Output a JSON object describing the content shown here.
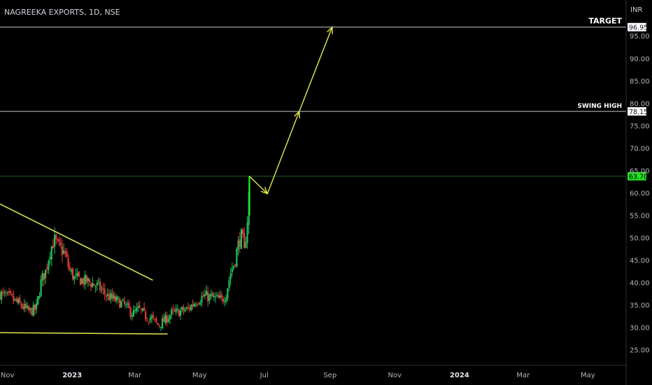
{
  "chart_data": {
    "type": "candlestick",
    "title": "NAGREEKA EXPORTS, 1D, NSE",
    "currency": "INR",
    "ylim": [
      21.5,
      103
    ],
    "y_ticks": [
      "25.00",
      "30.00",
      "35.00",
      "40.00",
      "45.00",
      "50.00",
      "55.00",
      "60.00",
      "65.00",
      "70.00",
      "75.00",
      "80.00",
      "85.00",
      "90.00",
      "95.00"
    ],
    "x_ticks": [
      {
        "label": "Nov",
        "day": 0
      },
      {
        "label": "2023",
        "day": 61,
        "bold": true
      },
      {
        "label": "Mar",
        "day": 120
      },
      {
        "label": "May",
        "day": 181
      },
      {
        "label": "Jul",
        "day": 242
      },
      {
        "label": "Sep",
        "day": 304
      },
      {
        "label": "Nov",
        "day": 365
      },
      {
        "label": "2024",
        "day": 426,
        "bold": true
      },
      {
        "label": "Mar",
        "day": 486
      },
      {
        "label": "May",
        "day": 547
      }
    ],
    "x_range_days": [
      -7,
      583
    ],
    "levels": [
      {
        "name": "TARGET",
        "value": 96.95,
        "label": "96.95",
        "color": "#ffffff"
      },
      {
        "name": "SWING HIGH",
        "value": 78.15,
        "label": "78.15",
        "color": "#ffffff"
      }
    ],
    "last_price": {
      "value": 63.7,
      "label": "63.70",
      "color": "#22e022"
    },
    "price_path": [
      {
        "day": -7,
        "close": 37.5
      },
      {
        "day": 3,
        "close": 36.5
      },
      {
        "day": 12,
        "close": 35.0
      },
      {
        "day": 20,
        "close": 33.5
      },
      {
        "day": 27,
        "close": 34.0
      },
      {
        "day": 32,
        "close": 40.5
      },
      {
        "day": 36,
        "close": 42.5
      },
      {
        "day": 40,
        "close": 47.0
      },
      {
        "day": 44,
        "close": 49.5
      },
      {
        "day": 48,
        "close": 48.0
      },
      {
        "day": 54,
        "close": 46.5
      },
      {
        "day": 58,
        "close": 43.0
      },
      {
        "day": 63,
        "close": 41.0
      },
      {
        "day": 70,
        "close": 40.5
      },
      {
        "day": 78,
        "close": 40.0
      },
      {
        "day": 86,
        "close": 39.0
      },
      {
        "day": 94,
        "close": 37.0
      },
      {
        "day": 102,
        "close": 36.0
      },
      {
        "day": 110,
        "close": 35.0
      },
      {
        "day": 118,
        "close": 33.0
      },
      {
        "day": 124,
        "close": 34.0
      },
      {
        "day": 130,
        "close": 32.5
      },
      {
        "day": 136,
        "close": 32.0
      },
      {
        "day": 142,
        "close": 30.5
      },
      {
        "day": 148,
        "close": 31.5
      },
      {
        "day": 154,
        "close": 33.0
      },
      {
        "day": 162,
        "close": 33.5
      },
      {
        "day": 170,
        "close": 34.0
      },
      {
        "day": 178,
        "close": 36.0
      },
      {
        "day": 186,
        "close": 37.0
      },
      {
        "day": 194,
        "close": 36.5
      },
      {
        "day": 202,
        "close": 36.0
      },
      {
        "day": 206,
        "close": 37.5
      },
      {
        "day": 210,
        "close": 42.0
      },
      {
        "day": 214,
        "close": 44.5
      },
      {
        "day": 217,
        "close": 48.0
      },
      {
        "day": 220,
        "close": 50.5
      },
      {
        "day": 222,
        "close": 49.0
      },
      {
        "day": 224,
        "close": 45.0
      },
      {
        "day": 225,
        "close": 53.0
      },
      {
        "day": 227,
        "close": 55.0
      },
      {
        "day": 228,
        "close": 63.7
      }
    ],
    "projection": [
      {
        "day": 228,
        "value": 63.7
      },
      {
        "day": 245,
        "value": 59.8
      },
      {
        "day": 275,
        "value": 78.15
      },
      {
        "day": 306,
        "value": 96.95
      }
    ],
    "trendlines": [
      {
        "name": "descending-resistance",
        "from": {
          "day": -7,
          "value": 57.5
        },
        "to": {
          "day": 137,
          "value": 40.5
        }
      },
      {
        "name": "support",
        "from": {
          "day": -7,
          "value": 28.8
        },
        "to": {
          "day": 151,
          "value": 28.5
        }
      }
    ]
  }
}
